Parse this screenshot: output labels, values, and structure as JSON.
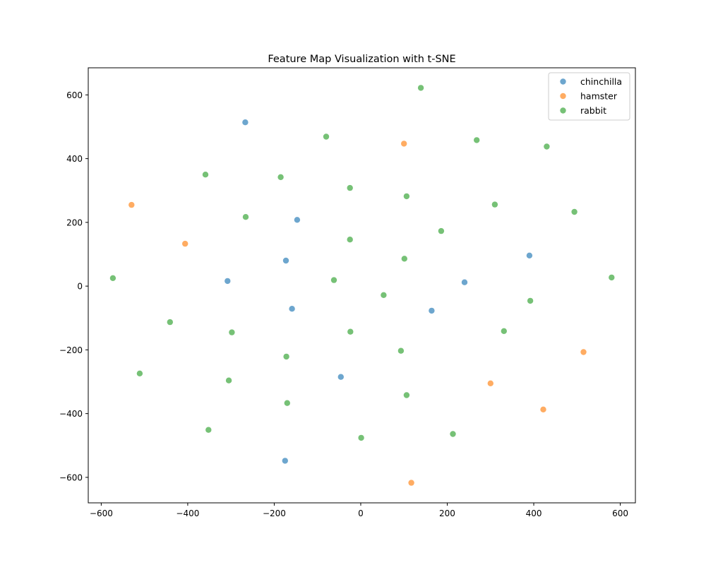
{
  "chart_data": {
    "type": "scatter",
    "title": "Feature Map Visualization with t-SNE",
    "xlabel": "",
    "ylabel": "",
    "xlim": [
      -630,
      635
    ],
    "ylim": [
      -680,
      685
    ],
    "xticks": [
      -600,
      -400,
      -200,
      0,
      200,
      400,
      600
    ],
    "yticks": [
      -600,
      -400,
      -200,
      0,
      200,
      400,
      600
    ],
    "grid": false,
    "legend_position": "top-right",
    "series": [
      {
        "name": "chinchilla",
        "color": "#1f77b4",
        "points": [
          [
            -267,
            514
          ],
          [
            -147,
            208
          ],
          [
            -173,
            80
          ],
          [
            -308,
            16
          ],
          [
            -159,
            -71
          ],
          [
            -46,
            -285
          ],
          [
            164,
            -77
          ],
          [
            240,
            12
          ],
          [
            390,
            96
          ],
          [
            -175,
            -548
          ]
        ]
      },
      {
        "name": "hamster",
        "color": "#ff7f0e",
        "points": [
          [
            -530,
            255
          ],
          [
            -406,
            133
          ],
          [
            100,
            447
          ],
          [
            515,
            -207
          ],
          [
            300,
            -305
          ],
          [
            422,
            -387
          ],
          [
            117,
            -617
          ]
        ]
      },
      {
        "name": "rabbit",
        "color": "#2ca02c",
        "points": [
          [
            139,
            622
          ],
          [
            -80,
            469
          ],
          [
            268,
            458
          ],
          [
            430,
            438
          ],
          [
            -359,
            350
          ],
          [
            -185,
            342
          ],
          [
            -25,
            308
          ],
          [
            106,
            282
          ],
          [
            310,
            256
          ],
          [
            494,
            233
          ],
          [
            -266,
            217
          ],
          [
            186,
            173
          ],
          [
            -25,
            146
          ],
          [
            101,
            86
          ],
          [
            -573,
            25
          ],
          [
            -62,
            19
          ],
          [
            580,
            27
          ],
          [
            53,
            -28
          ],
          [
            392,
            -46
          ],
          [
            -441,
            -113
          ],
          [
            -298,
            -145
          ],
          [
            -24,
            -143
          ],
          [
            331,
            -141
          ],
          [
            93,
            -203
          ],
          [
            -172,
            -221
          ],
          [
            -511,
            -274
          ],
          [
            -305,
            -296
          ],
          [
            106,
            -342
          ],
          [
            -170,
            -367
          ],
          [
            -352,
            -451
          ],
          [
            213,
            -464
          ],
          [
            1,
            -476
          ]
        ]
      }
    ]
  }
}
